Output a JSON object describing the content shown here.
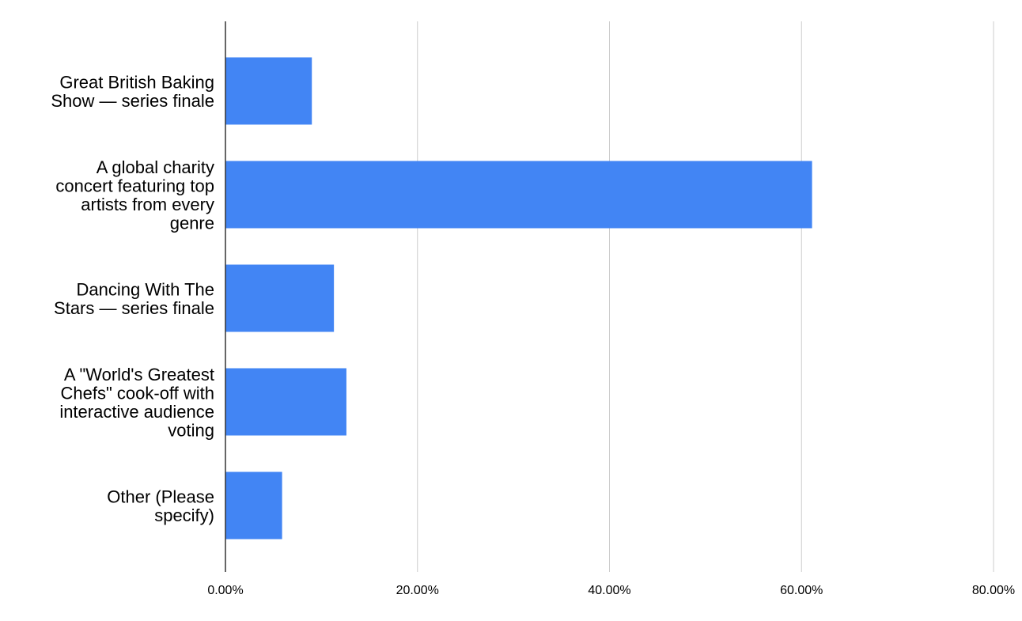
{
  "chart_data": {
    "type": "bar",
    "orientation": "horizontal",
    "title": "",
    "xlabel": "",
    "ylabel": "",
    "categories": [
      "Great British Baking Show — series finale",
      "A global charity concert featuring top artists from every genre",
      "Dancing With The Stars — series finale",
      "A \"World's Greatest Chefs\" cook-off with interactive audience voting",
      "Other (Please specify)"
    ],
    "category_label_lines": [
      [
        "Great British Baking",
        "Show — series finale"
      ],
      [
        "A global charity",
        "concert featuring top",
        "artists from every",
        "genre"
      ],
      [
        "Dancing With The",
        "Stars — series finale"
      ],
      [
        "A \"World's Greatest",
        "Chefs\" cook-off with",
        "interactive audience",
        "voting"
      ],
      [
        "Other (Please",
        "specify)"
      ]
    ],
    "series": [
      {
        "values": [
          9.0,
          61.1,
          11.3,
          12.6,
          5.9
        ],
        "color": "#4285f4"
      }
    ],
    "xlim": [
      0,
      80
    ],
    "x_ticks": [
      0,
      20,
      40,
      60,
      80
    ],
    "x_tick_labels": [
      "0.00%",
      "20.00%",
      "40.00%",
      "60.00%",
      "80.00%"
    ],
    "grid": "vertical",
    "legend": "none"
  }
}
